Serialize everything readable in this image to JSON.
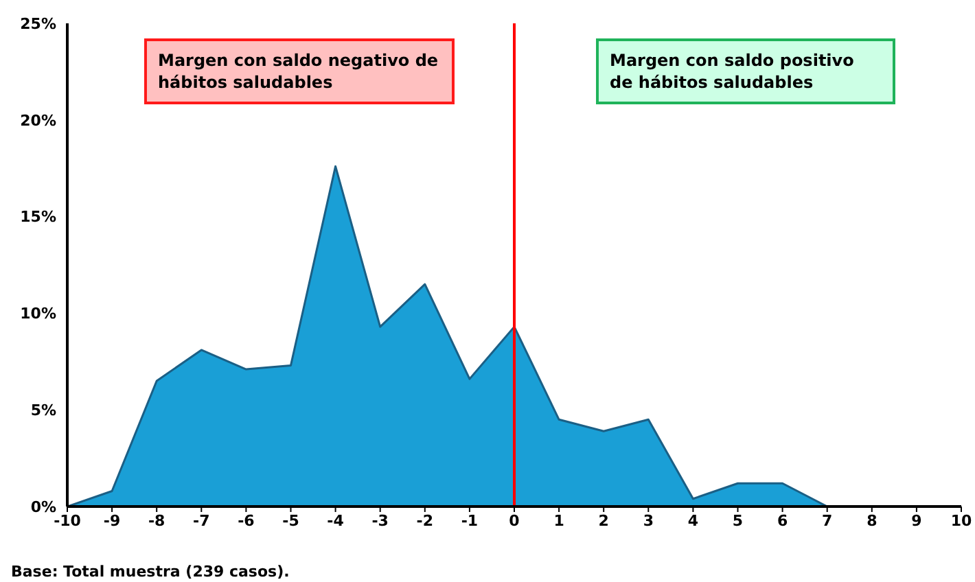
{
  "chart_data": {
    "type": "area",
    "x": [
      -10,
      -9,
      -8,
      -7,
      -6,
      -5,
      -4,
      -3,
      -2,
      -1,
      0,
      1,
      2,
      3,
      4,
      5,
      6,
      7
    ],
    "series": [
      {
        "color": "#1a9fd6",
        "values": [
          0,
          0.8,
          6.5,
          8.1,
          7.1,
          7.3,
          17.6,
          9.3,
          11.5,
          6.6,
          9.3,
          4.5,
          3.9,
          4.5,
          0.4,
          1.2,
          1.2,
          0
        ]
      }
    ],
    "xlim": [
      -10,
      10
    ],
    "xticks": [
      -10,
      -9,
      -8,
      -7,
      -6,
      -5,
      -4,
      -3,
      -2,
      -1,
      0,
      1,
      2,
      3,
      4,
      5,
      6,
      7,
      8,
      9,
      10
    ],
    "ylim": [
      0,
      25
    ],
    "yticks": [
      {
        "value": 0,
        "label": "0%"
      },
      {
        "value": 5,
        "label": "5%"
      },
      {
        "value": 10,
        "label": "10%"
      },
      {
        "value": 15,
        "label": "15%"
      },
      {
        "value": 20,
        "label": "20%"
      },
      {
        "value": 25,
        "label": "25%"
      }
    ],
    "ref_lines": [
      {
        "axis": "x",
        "value": 0,
        "color": "#ff0000"
      }
    ],
    "grid": false,
    "legend": false,
    "annotations": [
      "Margen con saldo negativo de hábitos saludables",
      "Margen con saldo positivo de hábitos saludables",
      "Base: Total muestra (239 casos)."
    ]
  }
}
